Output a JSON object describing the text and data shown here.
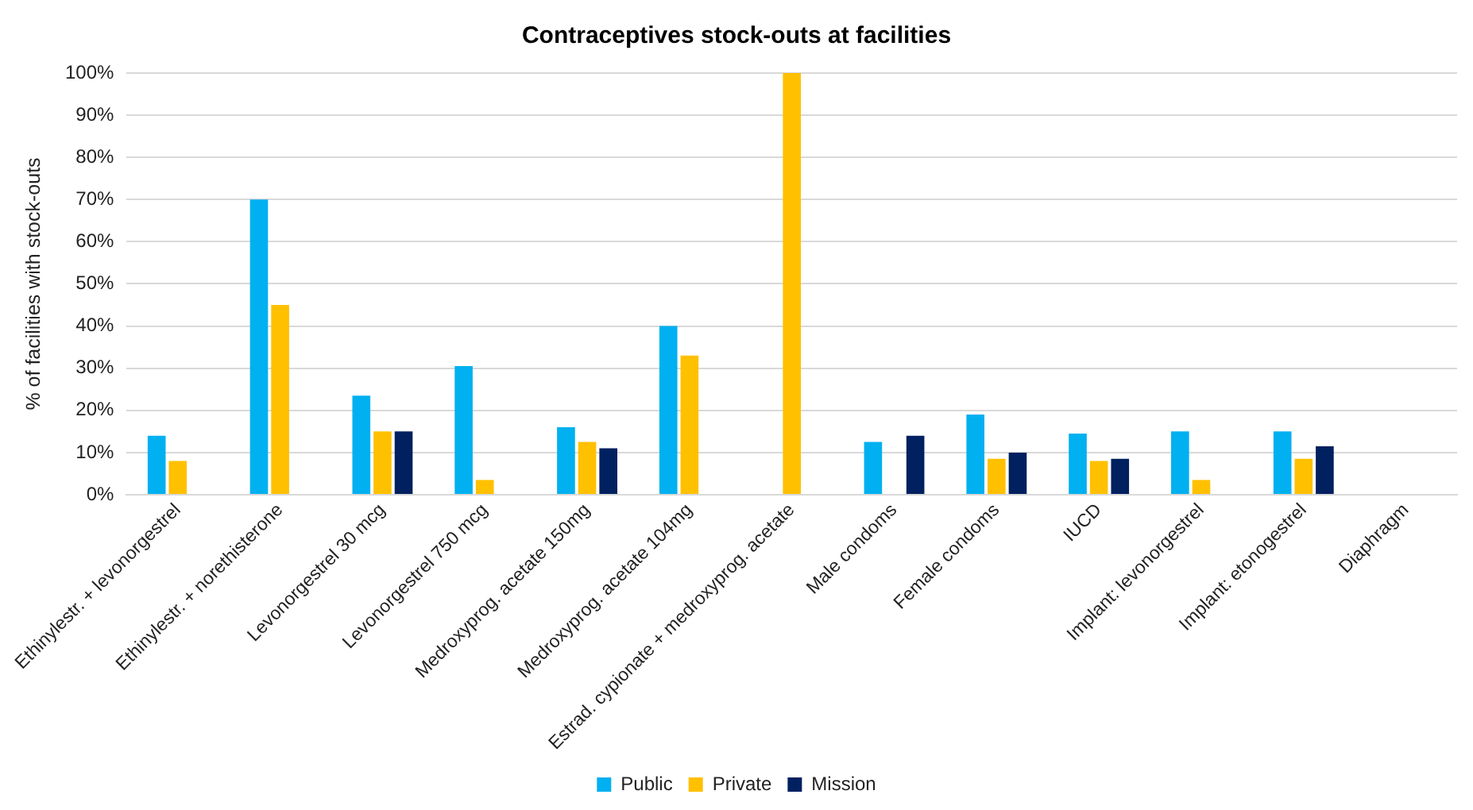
{
  "chart_data": {
    "type": "bar",
    "title": "Contraceptives stock-outs at facilities",
    "ylabel": "% of facilities with stock-outs",
    "categories": [
      "Ethinylestr. + levonorgestrel",
      "Ethinylestr. + norethisterone",
      "Levonorgestrel 30 mcg",
      "Levonorgestrel 750 mcg",
      "Medroxyprog. acetate 150mg",
      "Medroxyprog. acetate 104mg",
      "Estrad. cypionate + medroxyprog. acetate",
      "Male condoms",
      "Female condoms",
      "IUCD",
      "Implant: levonorgestrel",
      "Implant: etonogestrel",
      "Diaphragm"
    ],
    "series": [
      {
        "name": "Public",
        "color": "#00b0f0",
        "values": [
          14,
          70,
          23.5,
          30.5,
          16,
          40,
          null,
          12.5,
          19,
          14.5,
          15,
          15,
          null
        ]
      },
      {
        "name": "Private",
        "color": "#ffc000",
        "values": [
          8,
          45,
          15,
          3.5,
          12.5,
          33,
          100,
          null,
          8.5,
          8,
          3.5,
          8.5,
          null
        ]
      },
      {
        "name": "Mission",
        "color": "#002060",
        "values": [
          null,
          null,
          15,
          null,
          11,
          null,
          null,
          14,
          10,
          8.5,
          null,
          11.5,
          null
        ]
      }
    ],
    "ylim": [
      0,
      100
    ],
    "yticks": [
      {
        "value": 0,
        "label": "0%"
      },
      {
        "value": 10,
        "label": "10%"
      },
      {
        "value": 20,
        "label": "20%"
      },
      {
        "value": 30,
        "label": "30%"
      },
      {
        "value": 40,
        "label": "40%"
      },
      {
        "value": 50,
        "label": "50%"
      },
      {
        "value": 60,
        "label": "60%"
      },
      {
        "value": 70,
        "label": "70%"
      },
      {
        "value": 80,
        "label": "80%"
      },
      {
        "value": 90,
        "label": "90%"
      },
      {
        "value": 100,
        "label": "100%"
      }
    ],
    "grid": "y",
    "legend": "bottom"
  }
}
